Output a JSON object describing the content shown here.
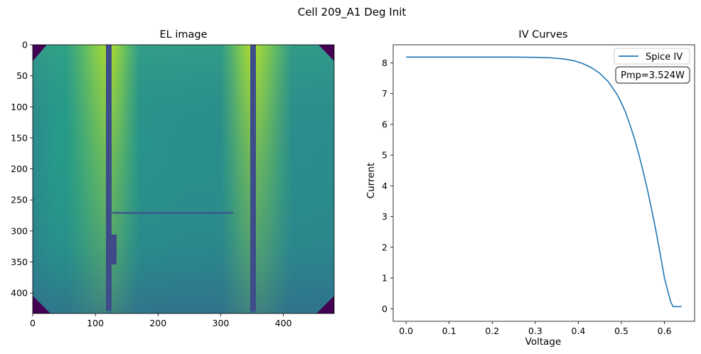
{
  "figure": {
    "suptitle": "Cell 209_A1 Deg Init"
  },
  "chart_data": [
    {
      "type": "heatmap",
      "title": "EL image",
      "colormap": "viridis",
      "image_width": 481,
      "image_height": 433,
      "x_ticks": [
        0,
        100,
        200,
        300,
        400
      ],
      "y_ticks": [
        0,
        50,
        100,
        150,
        200,
        250,
        300,
        350,
        400
      ],
      "xlim": [
        0,
        481
      ],
      "ylim": [
        433,
        0
      ],
      "features": {
        "busbars_x": [
          122,
          356
        ],
        "crack_y": 272,
        "crack_x_range": [
          130,
          320
        ]
      }
    },
    {
      "type": "line",
      "title": "IV Curves",
      "xlabel": "Voltage",
      "ylabel": "Current",
      "xlim": [
        -0.03,
        0.67
      ],
      "ylim": [
        -0.41,
        8.59
      ],
      "x_ticks": [
        0.0,
        0.1,
        0.2,
        0.3,
        0.4,
        0.5,
        0.6
      ],
      "y_ticks": [
        0,
        1,
        2,
        3,
        4,
        5,
        6,
        7,
        8
      ],
      "legend": {
        "position": "top-right"
      },
      "annotation": "Pmp=3.524W",
      "series": [
        {
          "name": "Spice IV",
          "color": "#1f77b4",
          "x": [
            0.0,
            0.05,
            0.1,
            0.15,
            0.2,
            0.25,
            0.3,
            0.33,
            0.35,
            0.37,
            0.39,
            0.41,
            0.43,
            0.45,
            0.47,
            0.49,
            0.5,
            0.51,
            0.52,
            0.53,
            0.54,
            0.55,
            0.56,
            0.57,
            0.58,
            0.59,
            0.6,
            0.61,
            0.615,
            0.62,
            0.63,
            0.64
          ],
          "y": [
            8.19,
            8.19,
            8.19,
            8.19,
            8.19,
            8.19,
            8.18,
            8.17,
            8.15,
            8.12,
            8.07,
            7.98,
            7.85,
            7.66,
            7.38,
            6.97,
            6.7,
            6.38,
            5.98,
            5.55,
            5.05,
            4.5,
            3.9,
            3.25,
            2.55,
            1.8,
            1.0,
            0.45,
            0.2,
            0.07,
            0.07,
            0.07
          ]
        }
      ]
    }
  ]
}
